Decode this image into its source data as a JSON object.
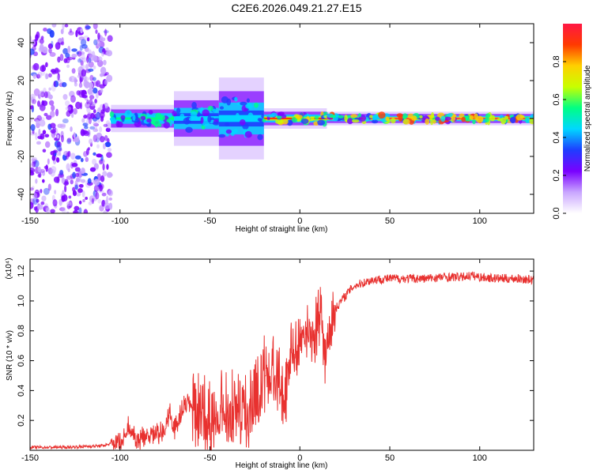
{
  "title": "C2E6.2026.049.21.27.E15",
  "chart_data": [
    {
      "type": "heatmap",
      "name": "spectrogram",
      "xlabel": "Height of straight line (km)",
      "ylabel": "Frequency (Hz)",
      "xlim": [
        -150,
        130
      ],
      "ylim": [
        -50,
        50
      ],
      "xticks": [
        -150,
        -100,
        -50,
        0,
        50,
        100
      ],
      "yticks": [
        -40,
        -20,
        0,
        20,
        40
      ],
      "colorbar": {
        "label": "Normalized spectral amplitude",
        "range": [
          0,
          1
        ],
        "ticks": [
          "0.0",
          "0.2",
          "0.4",
          "0.6",
          "0.8"
        ],
        "colors": [
          "#ffffff",
          "#c9a6ff",
          "#7a00ff",
          "#1f3dff",
          "#00d7ff",
          "#00ff84",
          "#c8ff00",
          "#ffd000",
          "#ff3a00",
          "#ff1744"
        ]
      },
      "features": {
        "noise_region_x": [
          -150,
          -105
        ],
        "band_center_hz": 0,
        "band_segments": [
          {
            "x": [
              -105,
              -70
            ],
            "halfwidth_hz": 4,
            "peak": 0.55
          },
          {
            "x": [
              -70,
              -45
            ],
            "halfwidth_hz": 8,
            "peak": 0.45
          },
          {
            "x": [
              -45,
              -20
            ],
            "halfwidth_hz": 12,
            "peak": 0.45
          },
          {
            "x": [
              -20,
              15
            ],
            "halfwidth_hz": 3,
            "peak": 0.9
          },
          {
            "x": [
              15,
              130
            ],
            "halfwidth_hz": 2,
            "peak": 1.0
          }
        ]
      }
    },
    {
      "type": "line",
      "name": "snr",
      "xlabel": "Height of straight line (km)",
      "ylabel": "SNR (10 * v/v)",
      "y_multiplier": "(x10⁴)",
      "xlim": [
        -150,
        130
      ],
      "ylim": [
        0,
        1.28
      ],
      "xticks": [
        -150,
        -100,
        -50,
        0,
        50,
        100
      ],
      "yticks": [
        "0.2",
        "0.4",
        "0.6",
        "0.8",
        "1.0",
        "1.2"
      ],
      "color": "#e8312f",
      "series": [
        {
          "x": [
            -150,
            -130,
            -110,
            -102,
            -98,
            -95,
            -92,
            -90,
            -85,
            -80,
            -75,
            -72,
            -70,
            -65,
            -60,
            -55,
            -50,
            -45,
            -40,
            -35,
            -30,
            -25,
            -20,
            -15,
            -12,
            -10,
            -8,
            -5,
            -2,
            0,
            3,
            5,
            8,
            10,
            12,
            14,
            15,
            17,
            20,
            23,
            27,
            30,
            40,
            50,
            60,
            70,
            80,
            90,
            95,
            100,
            110,
            120,
            130
          ],
          "y": [
            0.02,
            0.02,
            0.03,
            0.05,
            0.1,
            0.18,
            0.12,
            0.08,
            0.12,
            0.12,
            0.15,
            0.3,
            0.15,
            0.3,
            0.35,
            0.3,
            0.3,
            0.35,
            0.3,
            0.38,
            0.32,
            0.4,
            0.55,
            0.65,
            0.55,
            0.45,
            0.4,
            0.75,
            0.75,
            0.85,
            0.88,
            0.9,
            0.8,
            0.9,
            1.05,
            0.6,
            0.7,
            0.85,
            0.95,
            1.0,
            1.06,
            1.1,
            1.14,
            1.15,
            1.15,
            1.15,
            1.16,
            1.16,
            1.17,
            1.16,
            1.15,
            1.15,
            1.14
          ]
        }
      ]
    }
  ]
}
